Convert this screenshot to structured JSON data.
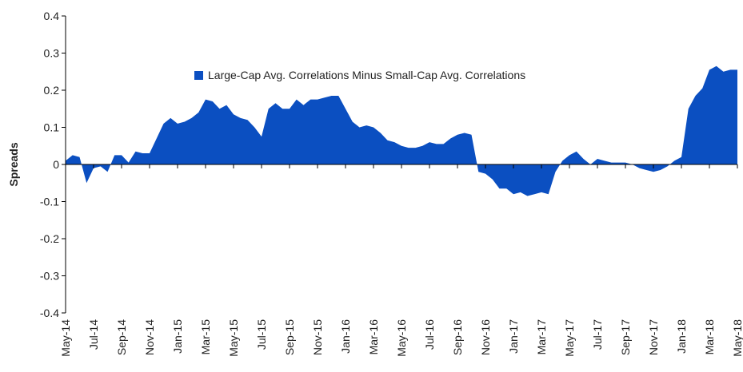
{
  "chart_data": {
    "type": "area",
    "y_label": "Spreads",
    "categories": [
      "May-14",
      null,
      null,
      null,
      "Jul-14",
      null,
      null,
      null,
      "Sep-14",
      null,
      null,
      null,
      "Nov-14",
      null,
      null,
      null,
      "Jan-15",
      null,
      null,
      null,
      "Mar-15",
      null,
      null,
      null,
      "May-15",
      null,
      null,
      null,
      "Jul-15",
      null,
      null,
      null,
      "Sep-15",
      null,
      null,
      null,
      "Nov-15",
      null,
      null,
      null,
      "Jan-16",
      null,
      null,
      null,
      "Mar-16",
      null,
      null,
      null,
      "May-16",
      null,
      null,
      null,
      "Jul-16",
      null,
      null,
      null,
      "Sep-16",
      null,
      null,
      null,
      "Nov-16",
      null,
      null,
      null,
      "Jan-17",
      null,
      null,
      null,
      "Mar-17",
      null,
      null,
      null,
      "May-17",
      null,
      null,
      null,
      "Jul-17",
      null,
      null,
      null,
      "Sep-17",
      null,
      null,
      null,
      "Nov-17",
      null,
      null,
      null,
      "Jan-18",
      null,
      null,
      null,
      "Mar-18",
      null,
      null,
      null,
      "May-18"
    ],
    "series": [
      {
        "name": "Large-Cap Avg. Correlations Minus Small-Cap Avg. Correlations",
        "color": "#0b4fc1",
        "values": [
          0.01,
          0.025,
          0.02,
          -0.05,
          -0.01,
          -0.005,
          -0.02,
          0.025,
          0.025,
          0.005,
          0.035,
          0.03,
          0.03,
          0.07,
          0.11,
          0.125,
          0.11,
          0.115,
          0.125,
          0.14,
          0.175,
          0.17,
          0.15,
          0.16,
          0.135,
          0.125,
          0.12,
          0.1,
          0.075,
          0.15,
          0.165,
          0.15,
          0.15,
          0.175,
          0.16,
          0.175,
          0.175,
          0.18,
          0.185,
          0.185,
          0.15,
          0.115,
          0.1,
          0.105,
          0.1,
          0.085,
          0.065,
          0.06,
          0.05,
          0.045,
          0.045,
          0.05,
          0.06,
          0.055,
          0.055,
          0.07,
          0.08,
          0.085,
          0.08,
          -0.02,
          -0.025,
          -0.04,
          -0.065,
          -0.065,
          -0.08,
          -0.075,
          -0.085,
          -0.08,
          -0.075,
          -0.08,
          -0.02,
          0.01,
          0.025,
          0.035,
          0.015,
          0,
          0.015,
          0.01,
          0.005,
          0.005,
          0.005,
          0,
          -0.01,
          -0.015,
          -0.02,
          -0.015,
          -0.005,
          0.01,
          0.02,
          0.15,
          0.185,
          0.205,
          0.255,
          0.265,
          0.25,
          0.255,
          0.255
        ]
      }
    ],
    "ylim": [
      -0.4,
      0.4
    ],
    "yticks": [
      -0.4,
      -0.3,
      -0.2,
      -0.1,
      0,
      0.1,
      0.2,
      0.3,
      0.4
    ],
    "legend": "top-center"
  }
}
